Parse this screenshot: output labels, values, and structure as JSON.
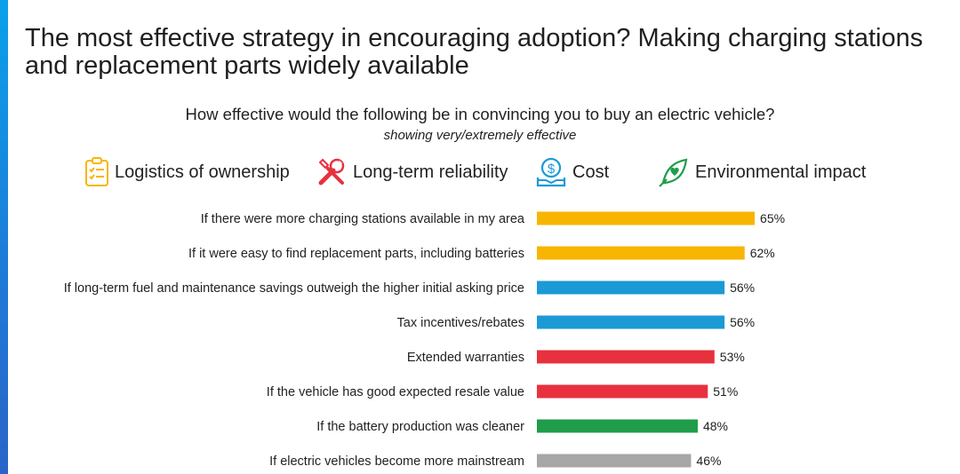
{
  "title": "The most effective strategy in encouraging adoption? Making charging stations and replacement parts widely available",
  "question": "How effective would the following be in convincing you to buy an electric vehicle?",
  "subtitle": "showing very/extremely effective",
  "legend": [
    {
      "label": "Logistics of ownership",
      "color": "#f7b500",
      "icon": "clipboard-checklist-icon"
    },
    {
      "label": "Long-term reliability",
      "color": "#e8313e",
      "icon": "wrench-screwdriver-icon"
    },
    {
      "label": "Cost",
      "color": "#1b9ad6",
      "icon": "money-hand-icon"
    },
    {
      "label": "Environmental impact",
      "color": "#1f9d4a",
      "icon": "heart-leaf-icon"
    }
  ],
  "chart_data": {
    "type": "bar",
    "orientation": "horizontal",
    "value_unit": "%",
    "xlim": [
      0,
      100
    ],
    "grid": false,
    "legend_position": "top",
    "categories": [
      "If there were more charging stations available in my area",
      "If it were easy to find replacement parts, including batteries",
      "If long-term fuel and maintenance savings outweigh the higher initial asking price",
      "Tax incentives/rebates",
      "Extended warranties",
      "If the vehicle has good expected resale value",
      "If the battery production was cleaner",
      "If electric vehicles become more mainstream"
    ],
    "values": [
      65,
      62,
      56,
      56,
      53,
      51,
      48,
      46
    ],
    "value_labels": [
      "65%",
      "62%",
      "56%",
      "56%",
      "53%",
      "51%",
      "48%",
      "46%"
    ],
    "bar_colors": [
      "#f7b500",
      "#f7b500",
      "#1b9ad6",
      "#1b9ad6",
      "#e8313e",
      "#e8313e",
      "#1f9d4a",
      "#a6a6a6"
    ]
  }
}
